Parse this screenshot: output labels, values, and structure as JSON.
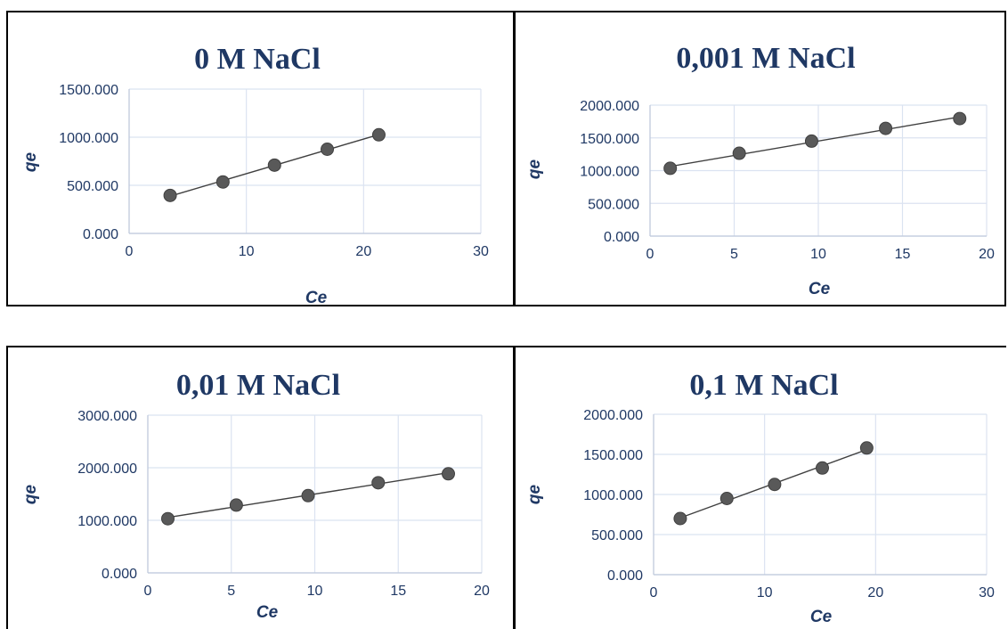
{
  "chart_data": [
    {
      "type": "scatter",
      "title": "0 M NaCl",
      "xlabel": "Ce",
      "ylabel": "qe",
      "xlim": [
        0,
        30
      ],
      "ylim": [
        0,
        1500
      ],
      "xticks": [
        "0",
        "10",
        "20",
        "30"
      ],
      "yticks": [
        "0.000",
        "500.000",
        "1000.000",
        "1500.000"
      ],
      "grid": true,
      "trendline": "linear",
      "points": [
        {
          "x": 3.5,
          "y": 395
        },
        {
          "x": 8.0,
          "y": 535
        },
        {
          "x": 12.4,
          "y": 710
        },
        {
          "x": 16.9,
          "y": 875
        },
        {
          "x": 21.3,
          "y": 1025
        }
      ]
    },
    {
      "type": "scatter",
      "title": "0,001 M NaCl",
      "xlabel": "Ce",
      "ylabel": "qe",
      "xlim": [
        0,
        20
      ],
      "ylim": [
        0,
        2000
      ],
      "xticks": [
        "0",
        "5",
        "10",
        "15",
        "20"
      ],
      "yticks": [
        "0.000",
        "500.000",
        "1000.000",
        "1500.000",
        "2000.000"
      ],
      "grid": true,
      "trendline": "linear",
      "points": [
        {
          "x": 1.2,
          "y": 1035
        },
        {
          "x": 5.3,
          "y": 1265
        },
        {
          "x": 9.6,
          "y": 1450
        },
        {
          "x": 14.0,
          "y": 1645
        },
        {
          "x": 18.4,
          "y": 1795
        }
      ]
    },
    {
      "type": "scatter",
      "title": "0,01 M NaCl",
      "xlabel": "Ce",
      "ylabel": "qe",
      "xlim": [
        0,
        20
      ],
      "ylim": [
        0,
        3000
      ],
      "xticks": [
        "0",
        "5",
        "10",
        "15",
        "20"
      ],
      "yticks": [
        "0.000",
        "1000.000",
        "2000.000",
        "3000.000"
      ],
      "grid": true,
      "trendline": "linear",
      "points": [
        {
          "x": 1.2,
          "y": 1030
        },
        {
          "x": 5.3,
          "y": 1290
        },
        {
          "x": 9.6,
          "y": 1470
        },
        {
          "x": 13.8,
          "y": 1715
        },
        {
          "x": 18.0,
          "y": 1885
        }
      ]
    },
    {
      "type": "scatter",
      "title": "0,1 M NaCl",
      "xlabel": "Ce",
      "ylabel": "qe",
      "xlim": [
        0,
        30
      ],
      "ylim": [
        0,
        2000
      ],
      "xticks": [
        "0",
        "10",
        "20",
        "30"
      ],
      "yticks": [
        "0.000",
        "500.000",
        "1000.000",
        "1500.000",
        "2000.000"
      ],
      "grid": true,
      "trendline": "linear",
      "points": [
        {
          "x": 2.4,
          "y": 700
        },
        {
          "x": 6.6,
          "y": 950
        },
        {
          "x": 10.9,
          "y": 1125
        },
        {
          "x": 15.2,
          "y": 1330
        },
        {
          "x": 19.2,
          "y": 1580
        }
      ]
    }
  ]
}
